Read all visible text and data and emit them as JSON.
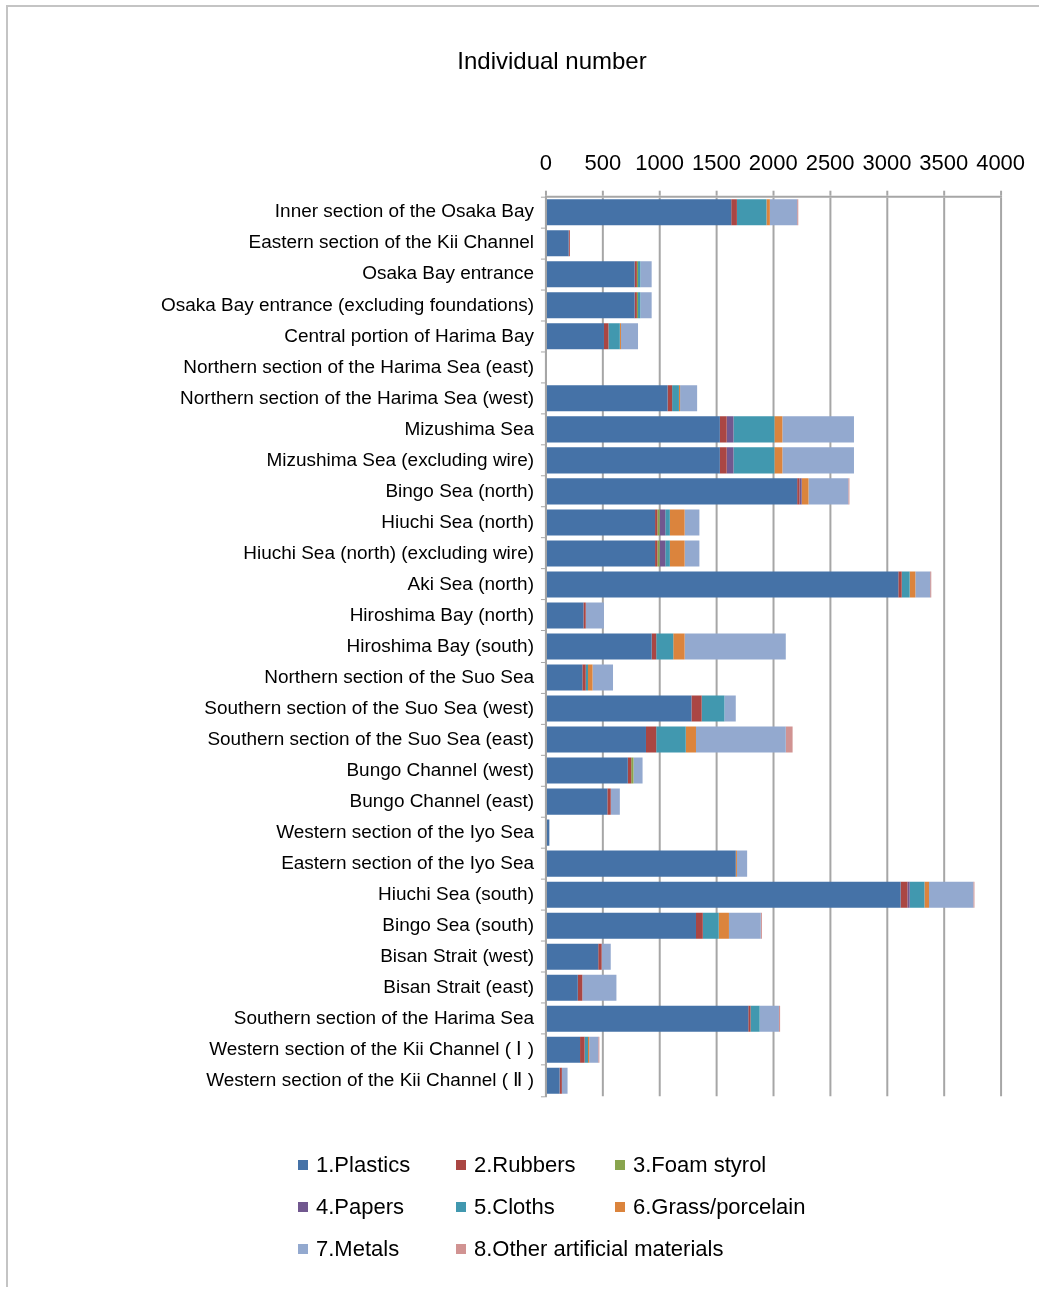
{
  "chart_data": {
    "type": "bar",
    "orientation": "horizontal",
    "stacked": true,
    "title": "Individual number",
    "categories": [
      "Inner section of the Osaka Bay",
      "Eastern section of the Kii Channel",
      "Osaka Bay entrance",
      "Osaka Bay entrance (excluding foundations)",
      "Central portion of Harima Bay",
      "Northern section of the Harima Sea (east)",
      "Northern section of the Harima Sea (west)",
      "Mizushima Sea",
      "Mizushima Sea (excluding wire)",
      "Bingo Sea (north)",
      "Hiuchi Sea (north)",
      "Hiuchi Sea (north) (excluding wire)",
      "Aki Sea (north)",
      "Hiroshima Bay (north)",
      "Hiroshima Bay (south)",
      "Northern section of the Suo Sea",
      "Southern section of the Suo Sea (west)",
      "Southern section of the Suo Sea (east)",
      "Bungo Channel (west)",
      "Bungo Channel (east)",
      "Western section of the Iyo Sea",
      "Eastern section of the Iyo Sea",
      "Hiuchi Sea (south)",
      "Bingo Sea (south)",
      "Bisan Strait (west)",
      "Bisan Strait (east)",
      "Southern section of the Harima Sea",
      "Western section of the Kii Channel ( Ⅰ )",
      "Western section of the Kii Channel ( Ⅱ )"
    ],
    "series": [
      {
        "name": "1.Plastics",
        "color": "#4572a7",
        "values": [
          1630,
          200,
          780,
          780,
          510,
          0,
          1070,
          1530,
          1530,
          2210,
          960,
          960,
          3100,
          330,
          930,
          320,
          1280,
          880,
          720,
          540,
          30,
          1670,
          3120,
          1320,
          460,
          280,
          1780,
          300,
          120
        ]
      },
      {
        "name": "2.Rubbers",
        "color": "#aa4643",
        "values": [
          50,
          10,
          20,
          20,
          40,
          0,
          40,
          60,
          60,
          20,
          20,
          20,
          30,
          20,
          40,
          30,
          90,
          90,
          30,
          30,
          0,
          0,
          60,
          60,
          30,
          40,
          20,
          40,
          20
        ]
      },
      {
        "name": "3.Foam styrol",
        "color": "#89a54e",
        "values": [
          0,
          0,
          10,
          10,
          0,
          0,
          0,
          0,
          0,
          0,
          20,
          20,
          0,
          0,
          0,
          0,
          0,
          0,
          20,
          0,
          0,
          0,
          0,
          0,
          0,
          0,
          0,
          0,
          0
        ]
      },
      {
        "name": "4.Papers",
        "color": "#71588f",
        "values": [
          0,
          0,
          0,
          0,
          0,
          0,
          0,
          60,
          60,
          20,
          50,
          50,
          0,
          0,
          0,
          0,
          0,
          0,
          0,
          0,
          0,
          0,
          20,
          0,
          0,
          0,
          0,
          0,
          0
        ]
      },
      {
        "name": "5.Cloths",
        "color": "#4198af",
        "values": [
          260,
          0,
          20,
          20,
          100,
          0,
          60,
          360,
          360,
          0,
          40,
          40,
          70,
          0,
          150,
          20,
          200,
          260,
          0,
          0,
          0,
          0,
          130,
          140,
          0,
          0,
          80,
          30,
          0
        ]
      },
      {
        "name": "6.Grass/porcelain",
        "color": "#db843d",
        "values": [
          30,
          0,
          0,
          0,
          10,
          0,
          10,
          70,
          70,
          60,
          130,
          130,
          50,
          0,
          100,
          40,
          0,
          90,
          0,
          0,
          0,
          10,
          40,
          90,
          0,
          0,
          0,
          10,
          0
        ]
      },
      {
        "name": "7.Metals",
        "color": "#93a9cf",
        "values": [
          240,
          0,
          100,
          100,
          150,
          0,
          150,
          630,
          630,
          350,
          130,
          130,
          130,
          160,
          890,
          180,
          100,
          790,
          80,
          80,
          0,
          90,
          390,
          280,
          80,
          300,
          170,
          80,
          50
        ]
      },
      {
        "name": "8.Other artificial materials",
        "color": "#d19392",
        "values": [
          10,
          0,
          0,
          0,
          0,
          0,
          0,
          0,
          0,
          10,
          0,
          0,
          10,
          0,
          0,
          0,
          0,
          60,
          0,
          0,
          0,
          0,
          10,
          10,
          0,
          0,
          10,
          10,
          0
        ]
      }
    ],
    "xlim": [
      0,
      4000
    ],
    "xticks": [
      0,
      500,
      1000,
      1500,
      2000,
      2500,
      3000,
      3500,
      4000
    ],
    "grid": "x",
    "legend": "bottom"
  }
}
